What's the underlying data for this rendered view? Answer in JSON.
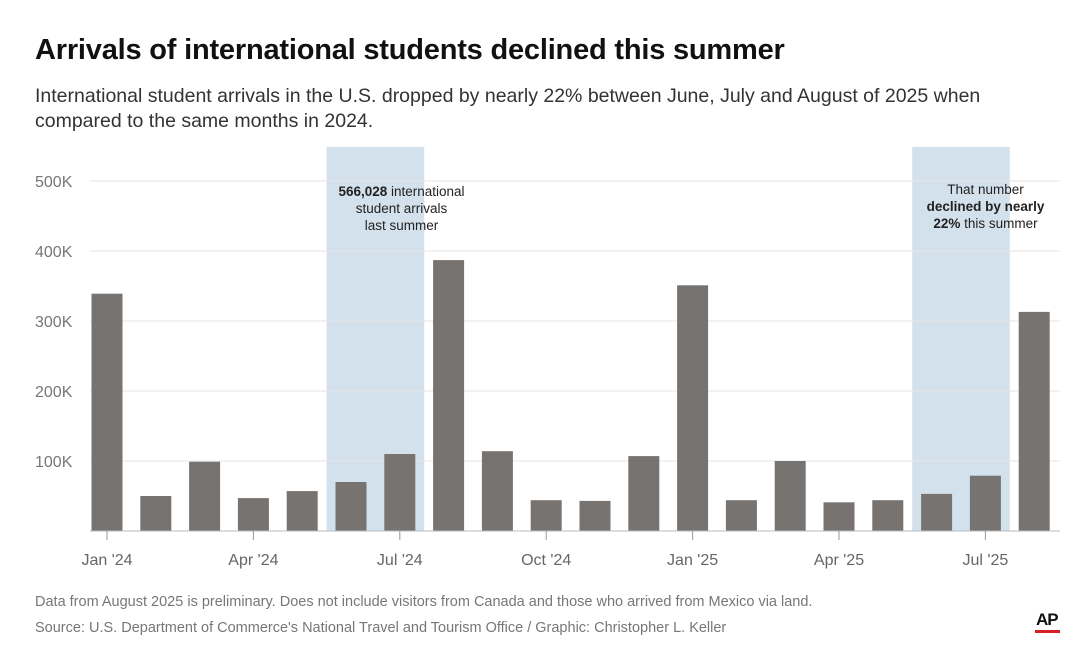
{
  "title": "Arrivals of international students declined this summer",
  "subtitle": "International student arrivals in the U.S. dropped by nearly 22% between June, July and August of 2025 when compared to the same months in 2024.",
  "annotations": {
    "left": {
      "bold": "566,028",
      "text1": " international",
      "text2": "student arrivals",
      "text3": "last summer"
    },
    "right": {
      "text1": "That number",
      "bold1": "declined by nearly",
      "bold2": "22%",
      "text2": " this summer"
    }
  },
  "footnote": "Data from August 2025 is preliminary. Does not include visitors from Canada and those who arrived from Mexico via land.",
  "source": "Source: U.S. Department of Commerce's National Travel and Tourism Office / Graphic: Christopher L. Keller",
  "logo": "AP",
  "colors": {
    "bar": "#777370",
    "highlight": "#d3e1ec",
    "logo_accent": "#d62027"
  },
  "chart_data": {
    "type": "bar",
    "categories": [
      "Jan 2024",
      "Feb 2024",
      "Mar 2024",
      "Apr 2024",
      "May 2024",
      "Jun 2024",
      "Jul 2024",
      "Aug 2024",
      "Sep 2024",
      "Oct 2024",
      "Nov 2024",
      "Dec 2024",
      "Jan 2025",
      "Feb 2025",
      "Mar 2025",
      "Apr 2025",
      "May 2025",
      "Jun 2025",
      "Jul 2025",
      "Aug 2025"
    ],
    "values": [
      339000,
      50000,
      99000,
      47000,
      57000,
      70000,
      110000,
      387000,
      114000,
      44000,
      43000,
      107000,
      351000,
      44000,
      100000,
      41000,
      44000,
      53000,
      79000,
      313000
    ],
    "ylim": [
      0,
      550000
    ],
    "yticks": [
      100000,
      200000,
      300000,
      400000,
      500000
    ],
    "ytick_labels": [
      "100K",
      "200K",
      "300K",
      "400K",
      "500K"
    ],
    "xtick_labels": [
      {
        "index": 0,
        "label": "Jan '24"
      },
      {
        "index": 3,
        "label": "Apr '24"
      },
      {
        "index": 6,
        "label": "Jul '24"
      },
      {
        "index": 9,
        "label": "Oct '24"
      },
      {
        "index": 12,
        "label": "Jan '25"
      },
      {
        "index": 15,
        "label": "Apr '25"
      },
      {
        "index": 18,
        "label": "Jul '25"
      }
    ],
    "highlight_ranges": [
      [
        5,
        7
      ],
      [
        17,
        19
      ]
    ],
    "grid": true,
    "xlabel": "",
    "ylabel": ""
  }
}
